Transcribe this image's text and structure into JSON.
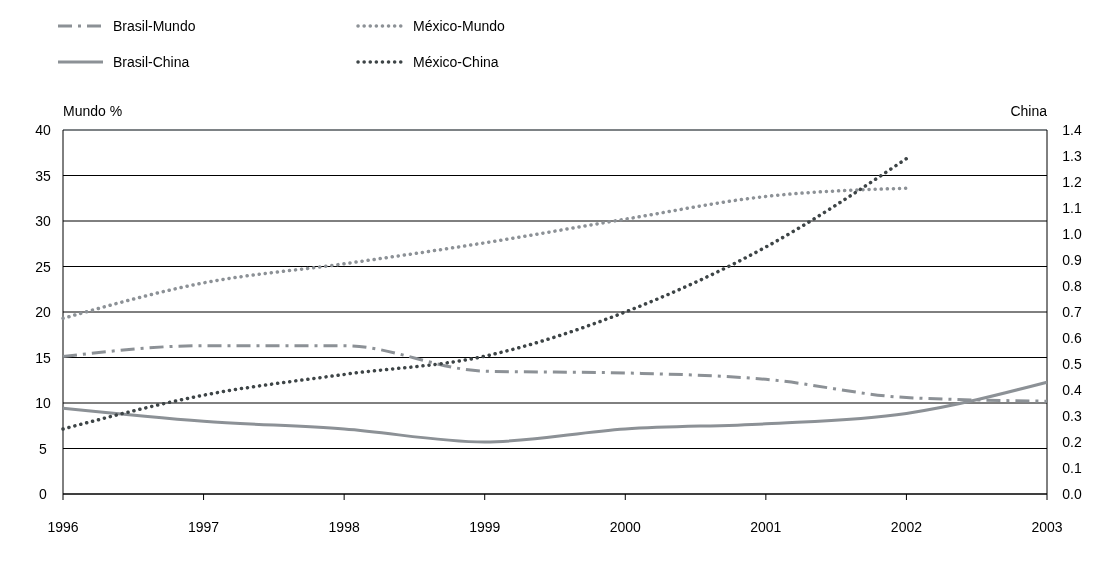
{
  "chart_data": {
    "type": "line",
    "ylabel": "Mundo  %",
    "y2label": "China",
    "categories": [
      "1996",
      "1997",
      "1998",
      "1999",
      "2000",
      "2001",
      "2002",
      "2003"
    ],
    "series": [
      {
        "name": "Brasil-Mundo",
        "color": "#8c9196",
        "line_style": "dashed",
        "values": [
          15.1,
          16.3,
          16.3,
          13.5,
          13.3,
          12.6,
          10.6,
          10.2
        ]
      },
      {
        "name": "México-Mundo",
        "color": "#8c9196",
        "line_style": "dotted",
        "values": [
          19.3,
          23.2,
          25.3,
          27.6,
          30.2,
          32.7,
          33.6,
          null
        ]
      },
      {
        "name": "Brasil-China",
        "color": "#8c9196",
        "line_style": "solid",
        "axis": "y2",
        "values": [
          0.33,
          0.28,
          0.25,
          0.2,
          0.25,
          0.27,
          0.31,
          0.43
        ]
      },
      {
        "name": "México-China",
        "color": "#3d4446",
        "line_style": "dotted",
        "axis": "y2",
        "values": [
          0.25,
          0.38,
          0.46,
          0.53,
          0.7,
          0.95,
          1.29,
          null
        ]
      }
    ],
    "ylim": [
      0,
      40
    ],
    "yticks": [
      0,
      5,
      10,
      15,
      20,
      25,
      30,
      35,
      40
    ],
    "y2lim": [
      0,
      1.4
    ],
    "y2ticks": [
      {
        "value": 0,
        "label": "0.0"
      },
      0.1,
      0.2,
      0.3,
      0.4,
      0.5,
      0.6,
      0.7,
      0.8,
      0.9,
      {
        "value": 1,
        "label": "1.0"
      },
      1.1,
      1.2,
      1.3,
      1.4
    ],
    "grid": "y",
    "legend": "top left"
  }
}
